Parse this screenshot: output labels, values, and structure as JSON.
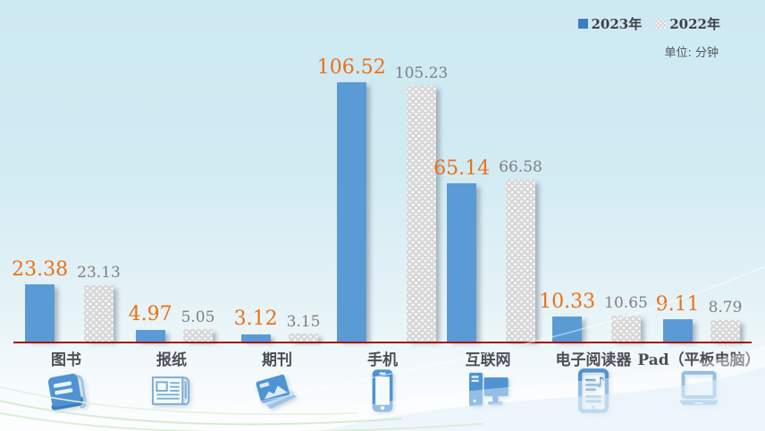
{
  "legend": {
    "items": [
      {
        "label": "2023年",
        "color": "#3d7ebf"
      },
      {
        "label": "2022年",
        "color": "#d8d8d8"
      }
    ]
  },
  "unit_label": "单位: 分钟",
  "chart_data": {
    "type": "bar",
    "title": "",
    "categories": [
      "图书",
      "报纸",
      "期刊",
      "手机",
      "互联网",
      "电子阅读器",
      "Pad（平板电脑）"
    ],
    "icons": [
      "book-icon",
      "newspaper-icon",
      "magazine-icon",
      "smartphone-icon",
      "desktop-computer-icon",
      "ereader-icon",
      "laptop-icon"
    ],
    "series": [
      {
        "name": "2023年",
        "values": [
          23.38,
          4.97,
          3.12,
          106.52,
          65.14,
          10.33,
          9.11
        ],
        "color": "#5b9bd5",
        "label_color": "#ec7014"
      },
      {
        "name": "2022年",
        "values": [
          23.13,
          5.05,
          3.15,
          105.23,
          66.58,
          10.65,
          8.79
        ],
        "color": "#d8d8d8",
        "label_color": "#7f7f7f"
      }
    ],
    "ylim": [
      0,
      110
    ],
    "xlabel": "",
    "ylabel": "",
    "grid": false,
    "legend_position": "top-right",
    "axis_line_color": "#a41412",
    "value_label_decimals": 2
  }
}
